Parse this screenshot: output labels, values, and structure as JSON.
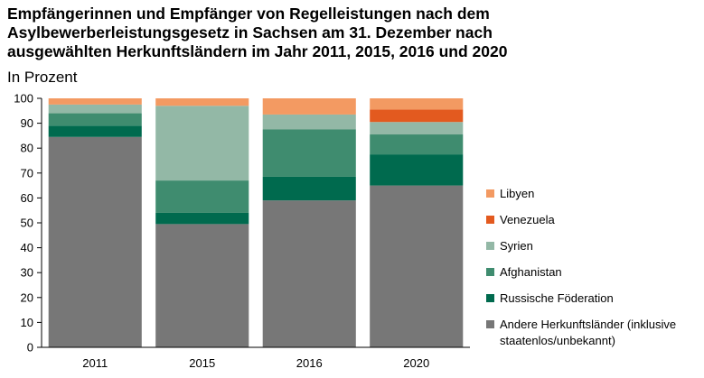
{
  "title_lines": [
    "Empfängerinnen und Empfänger von Regelleistungen nach dem",
    "Asylbewerberleistungsgesetz in Sachsen am 31. Dezember nach",
    "ausgewählten Herkunftsländern im Jahr 2011, 2015, 2016 und 2020"
  ],
  "unit_label": "In Prozent",
  "chart_data": {
    "type": "bar",
    "stacked": true,
    "title": "Empfängerinnen und Empfänger von Regelleistungen nach dem Asylbewerberleistungsgesetz in Sachsen am 31. Dezember nach ausgewählten Herkunftsländern im Jahr 2011, 2015, 2016 und 2020",
    "ylabel": "In Prozent",
    "xlabel": "",
    "ylim": [
      0,
      100
    ],
    "yticks": [
      0,
      10,
      20,
      30,
      40,
      50,
      60,
      70,
      80,
      90,
      100
    ],
    "grid": false,
    "legend_position": "right",
    "categories": [
      "2011",
      "2015",
      "2016",
      "2020"
    ],
    "series": [
      {
        "name": "Andere Herkunftsländer (inklusive staatenlos/unbekannt)",
        "color": "#777777",
        "values": [
          84.5,
          49.5,
          59.0,
          65.0
        ]
      },
      {
        "name": "Russische Föderation",
        "color": "#006a4e",
        "values": [
          4.5,
          4.5,
          9.5,
          12.5
        ]
      },
      {
        "name": "Afghanistan",
        "color": "#3f8c6f",
        "values": [
          5.0,
          13.0,
          19.0,
          8.0
        ]
      },
      {
        "name": "Syrien",
        "color": "#93b8a6",
        "values": [
          3.5,
          30.0,
          6.0,
          5.0
        ]
      },
      {
        "name": "Venezuela",
        "color": "#e35a1f",
        "values": [
          0.0,
          0.0,
          0.0,
          5.0
        ]
      },
      {
        "name": "Libyen",
        "color": "#f39a62",
        "values": [
          2.5,
          3.0,
          6.5,
          4.5
        ]
      }
    ]
  }
}
